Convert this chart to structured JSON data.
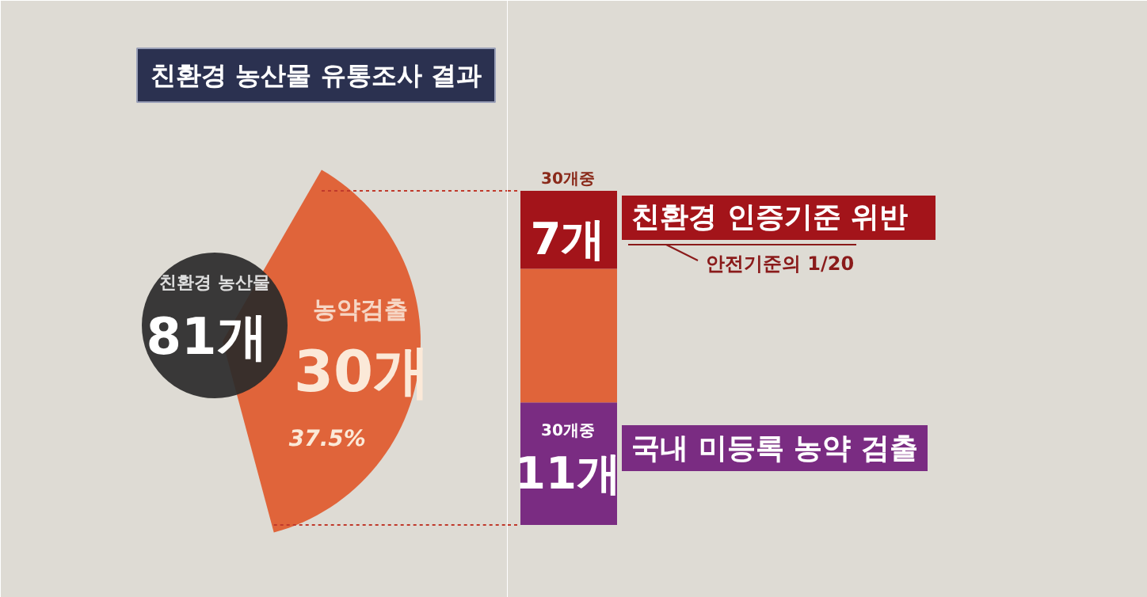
{
  "chart_data": [
    {
      "type": "pie",
      "title": "친환경 농산물 유통조사 결과",
      "categories": [
        "농약검출"
      ],
      "values": [
        37.5
      ],
      "colors": [
        "#e0643a"
      ],
      "value_labels": [
        "37.5%"
      ],
      "annotations": [
        "친환경 농산물",
        "81개",
        "30개"
      ]
    },
    {
      "type": "bar",
      "stacked": true,
      "categories": [
        null
      ],
      "ylim": [
        0,
        30
      ],
      "tick_labels": false,
      "series": [
        {
          "color": "#7a2c82",
          "values": [
            11
          ],
          "value_labels": [
            "11개"
          ]
        },
        {
          "color": "#e0643a",
          "values": [
            12
          ],
          "value_labels": [
            null
          ]
        },
        {
          "color": "#a3141a",
          "values": [
            7
          ],
          "value_labels": [
            "7개"
          ]
        }
      ],
      "annotations": [
        "30개중",
        "친환경 인증기준 위반",
        "안전기준의 1/20",
        "30개중",
        "국내 미등록 농약 검출"
      ]
    }
  ]
}
